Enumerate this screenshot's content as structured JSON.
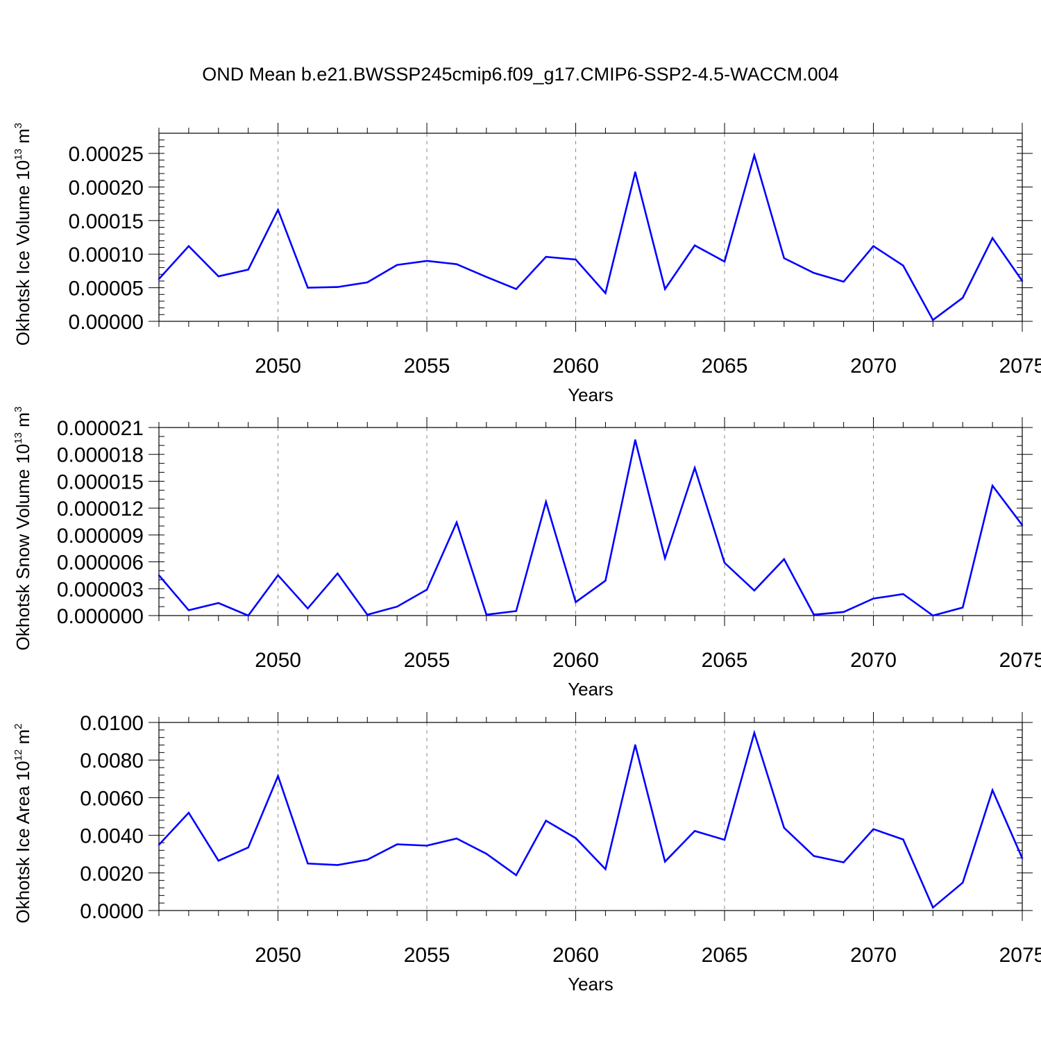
{
  "title": "OND Mean b.e21.BWSSP245cmip6.f09_g17.CMIP6-SSP2-4.5-WACCM.004",
  "colors": {
    "line": "#0000ff",
    "axis": "#000000",
    "grid": "#888888",
    "background": "#ffffff"
  },
  "chart_data": [
    {
      "type": "line",
      "xlabel": "Years",
      "ylabel_main": "Okhotsk Ice Volume 10",
      "ylabel_sup": "13",
      "ylabel_unit": " m",
      "ylabel_unit_sup": "3",
      "xlim": [
        2046,
        2075
      ],
      "ylim": [
        0,
        0.00028
      ],
      "yticks": [
        0,
        5e-05,
        0.0001,
        0.00015,
        0.0002,
        0.00025
      ],
      "ytick_labels": [
        "0.00000",
        "0.00005",
        "0.00010",
        "0.00015",
        "0.00020",
        "0.00025"
      ],
      "yminor_step": 1e-05,
      "xticks": [
        2050,
        2055,
        2060,
        2065,
        2070,
        2075
      ],
      "xtick_labels": [
        "2050",
        "2055",
        "2060",
        "2065",
        "2070",
        "2075"
      ],
      "grid": "vertical-dashed",
      "series": [
        {
          "name": "Okhotsk Ice Volume",
          "x": [
            2046,
            2047,
            2048,
            2049,
            2050,
            2051,
            2052,
            2053,
            2054,
            2055,
            2056,
            2057,
            2058,
            2059,
            2060,
            2061,
            2062,
            2063,
            2064,
            2065,
            2066,
            2067,
            2068,
            2069,
            2070,
            2071,
            2072,
            2073,
            2074,
            2075
          ],
          "values": [
            6.3e-05,
            0.000112,
            6.7e-05,
            7.7e-05,
            0.000166,
            5e-05,
            5.1e-05,
            5.8e-05,
            8.4e-05,
            9e-05,
            8.5e-05,
            6.6e-05,
            4.8e-05,
            9.6e-05,
            9.2e-05,
            4.2e-05,
            0.000222,
            4.8e-05,
            0.000113,
            8.9e-05,
            0.000247,
            9.4e-05,
            7.2e-05,
            5.9e-05,
            0.000112,
            8.3e-05,
            2e-06,
            3.5e-05,
            0.000124,
            6e-05
          ]
        }
      ]
    },
    {
      "type": "line",
      "xlabel": "Years",
      "ylabel_main": "Okhotsk Snow Volume 10",
      "ylabel_sup": "13",
      "ylabel_unit": " m",
      "ylabel_unit_sup": "3",
      "xlim": [
        2046,
        2075
      ],
      "ylim": [
        0,
        2.1e-05
      ],
      "yticks": [
        0,
        3e-06,
        6e-06,
        9e-06,
        1.2e-05,
        1.5e-05,
        1.8e-05,
        2.1e-05
      ],
      "ytick_labels": [
        "0.000000",
        "0.000003",
        "0.000006",
        "0.000009",
        "0.000012",
        "0.000015",
        "0.000018",
        "0.000021"
      ],
      "yminor_step": 1e-06,
      "xticks": [
        2050,
        2055,
        2060,
        2065,
        2070,
        2075
      ],
      "xtick_labels": [
        "2050",
        "2055",
        "2060",
        "2065",
        "2070",
        "2075"
      ],
      "grid": "vertical-dashed",
      "series": [
        {
          "name": "Okhotsk Snow Volume",
          "x": [
            2046,
            2047,
            2048,
            2049,
            2050,
            2051,
            2052,
            2053,
            2054,
            2055,
            2056,
            2057,
            2058,
            2059,
            2060,
            2061,
            2062,
            2063,
            2064,
            2065,
            2066,
            2067,
            2068,
            2069,
            2070,
            2071,
            2072,
            2073,
            2074,
            2075
          ],
          "values": [
            4.5e-06,
            6e-07,
            1.4e-06,
            0.0,
            4.5e-06,
            8e-07,
            4.7e-06,
            1e-07,
            1e-06,
            2.9e-06,
            1.04e-05,
            1e-07,
            5e-07,
            1.27e-05,
            1.5e-06,
            3.9e-06,
            1.96e-05,
            6.4e-06,
            1.65e-05,
            5.9e-06,
            2.8e-06,
            6.3e-06,
            1e-07,
            4e-07,
            1.9e-06,
            2.4e-06,
            0.0,
            9e-07,
            1.45e-05,
            1.01e-05
          ]
        }
      ]
    },
    {
      "type": "line",
      "xlabel": "Years",
      "ylabel_main": "Okhotsk Ice Area 10",
      "ylabel_sup": "12",
      "ylabel_unit": " m",
      "ylabel_unit_sup": "2",
      "xlim": [
        2046,
        2075
      ],
      "ylim": [
        0,
        0.01
      ],
      "yticks": [
        0,
        0.002,
        0.004,
        0.006,
        0.008,
        0.01
      ],
      "ytick_labels": [
        "0.0000",
        "0.0020",
        "0.0040",
        "0.0060",
        "0.0080",
        "0.0100"
      ],
      "yminor_step": 0.0004,
      "xticks": [
        2050,
        2055,
        2060,
        2065,
        2070,
        2075
      ],
      "xtick_labels": [
        "2050",
        "2055",
        "2060",
        "2065",
        "2070",
        "2075"
      ],
      "grid": "vertical-dashed",
      "series": [
        {
          "name": "Okhotsk Ice Area",
          "x": [
            2046,
            2047,
            2048,
            2049,
            2050,
            2051,
            2052,
            2053,
            2054,
            2055,
            2056,
            2057,
            2058,
            2059,
            2060,
            2061,
            2062,
            2063,
            2064,
            2065,
            2066,
            2067,
            2068,
            2069,
            2070,
            2071,
            2072,
            2073,
            2074,
            2075
          ],
          "values": [
            0.0035,
            0.0052,
            0.00265,
            0.00335,
            0.00715,
            0.0025,
            0.00242,
            0.0027,
            0.00352,
            0.00345,
            0.00383,
            0.00302,
            0.00188,
            0.00478,
            0.00385,
            0.0022,
            0.0088,
            0.0026,
            0.00423,
            0.00376,
            0.00945,
            0.0044,
            0.0029,
            0.00256,
            0.00433,
            0.00378,
            0.00016,
            0.00148,
            0.0064,
            0.00278
          ]
        }
      ]
    }
  ]
}
